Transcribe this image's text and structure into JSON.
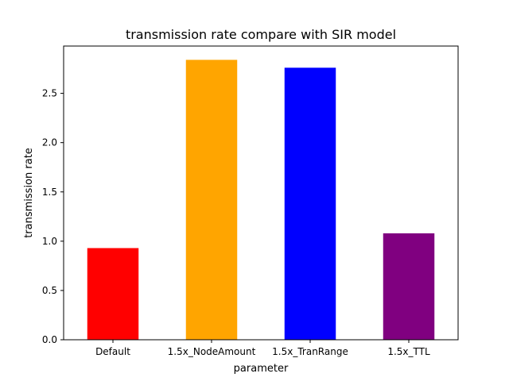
{
  "chart_data": {
    "type": "bar",
    "title": "transmission rate compare with SIR model",
    "xlabel": "parameter",
    "ylabel": "transmission rate",
    "categories": [
      "Default",
      "1.5x_NodeAmount",
      "1.5x_TranRange",
      "1.5x_TTL"
    ],
    "values": [
      0.93,
      2.84,
      2.76,
      1.08
    ],
    "colors": [
      "#ff0000",
      "#ffa500",
      "#0000ff",
      "#800080"
    ],
    "ylim": [
      0,
      2.98
    ],
    "yticks": [
      0.0,
      0.5,
      1.0,
      1.5,
      2.0,
      2.5
    ],
    "ytick_labels": [
      "0.0",
      "0.5",
      "1.0",
      "1.5",
      "2.0",
      "2.5"
    ],
    "grid": false,
    "legend": null
  }
}
